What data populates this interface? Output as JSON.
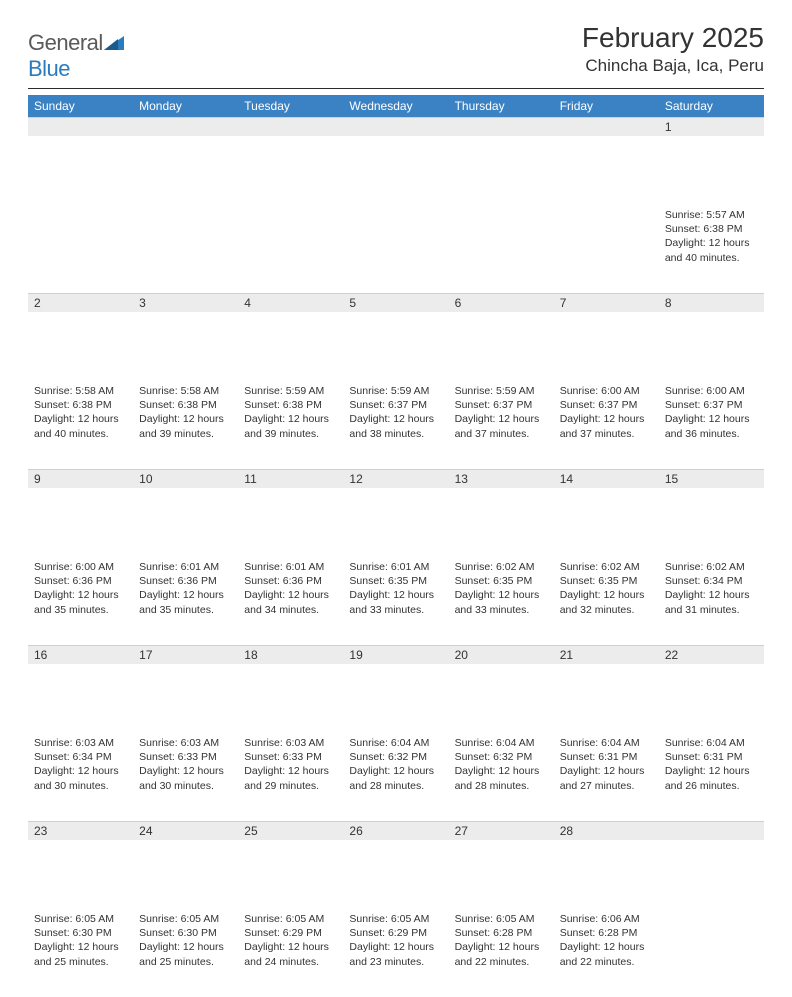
{
  "brand": {
    "name_part1": "General",
    "name_part2": "Blue"
  },
  "title": "February 2025",
  "location": "Chincha Baja, Ica, Peru",
  "colors": {
    "header_bg": "#3b82c4",
    "header_text": "#ffffff",
    "daynum_bg": "#ececec",
    "text": "#333333",
    "rule": "#2b2b2b"
  },
  "calendar": {
    "day_headers": [
      "Sunday",
      "Monday",
      "Tuesday",
      "Wednesday",
      "Thursday",
      "Friday",
      "Saturday"
    ],
    "weeks": [
      [
        null,
        null,
        null,
        null,
        null,
        null,
        {
          "n": "1",
          "sunrise": "5:57 AM",
          "sunset": "6:38 PM",
          "daylight": "12 hours and 40 minutes."
        }
      ],
      [
        {
          "n": "2",
          "sunrise": "5:58 AM",
          "sunset": "6:38 PM",
          "daylight": "12 hours and 40 minutes."
        },
        {
          "n": "3",
          "sunrise": "5:58 AM",
          "sunset": "6:38 PM",
          "daylight": "12 hours and 39 minutes."
        },
        {
          "n": "4",
          "sunrise": "5:59 AM",
          "sunset": "6:38 PM",
          "daylight": "12 hours and 39 minutes."
        },
        {
          "n": "5",
          "sunrise": "5:59 AM",
          "sunset": "6:37 PM",
          "daylight": "12 hours and 38 minutes."
        },
        {
          "n": "6",
          "sunrise": "5:59 AM",
          "sunset": "6:37 PM",
          "daylight": "12 hours and 37 minutes."
        },
        {
          "n": "7",
          "sunrise": "6:00 AM",
          "sunset": "6:37 PM",
          "daylight": "12 hours and 37 minutes."
        },
        {
          "n": "8",
          "sunrise": "6:00 AM",
          "sunset": "6:37 PM",
          "daylight": "12 hours and 36 minutes."
        }
      ],
      [
        {
          "n": "9",
          "sunrise": "6:00 AM",
          "sunset": "6:36 PM",
          "daylight": "12 hours and 35 minutes."
        },
        {
          "n": "10",
          "sunrise": "6:01 AM",
          "sunset": "6:36 PM",
          "daylight": "12 hours and 35 minutes."
        },
        {
          "n": "11",
          "sunrise": "6:01 AM",
          "sunset": "6:36 PM",
          "daylight": "12 hours and 34 minutes."
        },
        {
          "n": "12",
          "sunrise": "6:01 AM",
          "sunset": "6:35 PM",
          "daylight": "12 hours and 33 minutes."
        },
        {
          "n": "13",
          "sunrise": "6:02 AM",
          "sunset": "6:35 PM",
          "daylight": "12 hours and 33 minutes."
        },
        {
          "n": "14",
          "sunrise": "6:02 AM",
          "sunset": "6:35 PM",
          "daylight": "12 hours and 32 minutes."
        },
        {
          "n": "15",
          "sunrise": "6:02 AM",
          "sunset": "6:34 PM",
          "daylight": "12 hours and 31 minutes."
        }
      ],
      [
        {
          "n": "16",
          "sunrise": "6:03 AM",
          "sunset": "6:34 PM",
          "daylight": "12 hours and 30 minutes."
        },
        {
          "n": "17",
          "sunrise": "6:03 AM",
          "sunset": "6:33 PM",
          "daylight": "12 hours and 30 minutes."
        },
        {
          "n": "18",
          "sunrise": "6:03 AM",
          "sunset": "6:33 PM",
          "daylight": "12 hours and 29 minutes."
        },
        {
          "n": "19",
          "sunrise": "6:04 AM",
          "sunset": "6:32 PM",
          "daylight": "12 hours and 28 minutes."
        },
        {
          "n": "20",
          "sunrise": "6:04 AM",
          "sunset": "6:32 PM",
          "daylight": "12 hours and 28 minutes."
        },
        {
          "n": "21",
          "sunrise": "6:04 AM",
          "sunset": "6:31 PM",
          "daylight": "12 hours and 27 minutes."
        },
        {
          "n": "22",
          "sunrise": "6:04 AM",
          "sunset": "6:31 PM",
          "daylight": "12 hours and 26 minutes."
        }
      ],
      [
        {
          "n": "23",
          "sunrise": "6:05 AM",
          "sunset": "6:30 PM",
          "daylight": "12 hours and 25 minutes."
        },
        {
          "n": "24",
          "sunrise": "6:05 AM",
          "sunset": "6:30 PM",
          "daylight": "12 hours and 25 minutes."
        },
        {
          "n": "25",
          "sunrise": "6:05 AM",
          "sunset": "6:29 PM",
          "daylight": "12 hours and 24 minutes."
        },
        {
          "n": "26",
          "sunrise": "6:05 AM",
          "sunset": "6:29 PM",
          "daylight": "12 hours and 23 minutes."
        },
        {
          "n": "27",
          "sunrise": "6:05 AM",
          "sunset": "6:28 PM",
          "daylight": "12 hours and 22 minutes."
        },
        {
          "n": "28",
          "sunrise": "6:06 AM",
          "sunset": "6:28 PM",
          "daylight": "12 hours and 22 minutes."
        },
        null
      ]
    ]
  },
  "labels": {
    "sunrise": "Sunrise:",
    "sunset": "Sunset:",
    "daylight": "Daylight:"
  }
}
